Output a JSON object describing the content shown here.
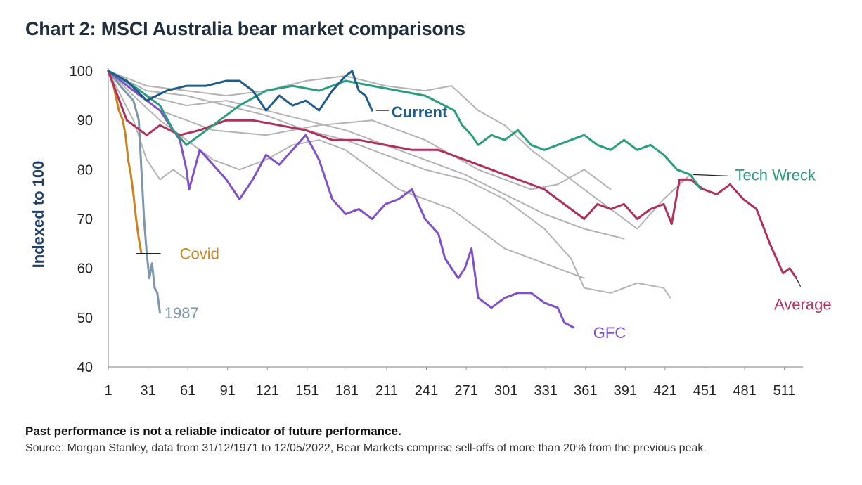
{
  "title": "Chart 2: MSCI Australia bear market comparisons",
  "footnote_bold": "Past performance is not a reliable indicator of future performance.",
  "footnote_source": "Source: Morgan Stanley, data from 31/12/1971 to 12/05/2022, Bear Markets comprise sell-offs of more than 20% from the previous peak.",
  "chart_data": {
    "type": "line",
    "title": "Chart 2: MSCI Australia bear market comparisons",
    "xlabel": "",
    "ylabel": "Indexed to 100",
    "xlim": [
      1,
      525
    ],
    "ylim": [
      40,
      100
    ],
    "x_ticks": [
      1,
      31,
      61,
      91,
      121,
      151,
      181,
      211,
      241,
      271,
      301,
      331,
      361,
      391,
      421,
      451,
      481,
      511
    ],
    "y_ticks": [
      40,
      50,
      60,
      70,
      80,
      90,
      100
    ],
    "grid": false,
    "legend": "direct labels",
    "series": [
      {
        "name": "Covid",
        "color": "#c9841f",
        "label_pos": [
          22,
          63
        ],
        "x": [
          1,
          5,
          9,
          12,
          14,
          16,
          18,
          20,
          22,
          24,
          26
        ],
        "y": [
          100,
          97,
          92,
          90,
          87,
          82,
          79,
          75,
          70,
          66,
          63
        ]
      },
      {
        "name": "1987",
        "color": "#7f95ab",
        "label_pos": [
          38,
          51
        ],
        "x": [
          1,
          10,
          20,
          24,
          26,
          28,
          30,
          32,
          34,
          36,
          38,
          40
        ],
        "y": [
          100,
          97,
          94,
          90,
          80,
          70,
          63,
          58,
          61,
          56,
          55,
          51
        ]
      },
      {
        "name": "GFC",
        "color": "#8050c8",
        "label_pos": [
          352,
          47
        ],
        "x": [
          1,
          20,
          40,
          55,
          60,
          62,
          70,
          80,
          90,
          100,
          110,
          120,
          130,
          140,
          150,
          160,
          170,
          180,
          190,
          200,
          210,
          220,
          230,
          240,
          250,
          255,
          260,
          265,
          270,
          275,
          280,
          290,
          300,
          310,
          320,
          330,
          340,
          345,
          352
        ],
        "y": [
          100,
          96,
          92,
          86,
          80,
          76,
          84,
          81,
          78,
          74,
          78,
          83,
          81,
          84,
          87,
          82,
          74,
          71,
          72,
          70,
          73,
          74,
          76,
          70,
          67,
          62,
          60,
          58,
          60,
          64,
          54,
          52,
          54,
          55,
          55,
          53,
          52,
          49,
          48
        ]
      },
      {
        "name": "Average",
        "color": "#b0305a",
        "label_pos": [
          520,
          58
        ],
        "x": [
          1,
          15,
          30,
          40,
          55,
          70,
          90,
          110,
          130,
          150,
          170,
          190,
          210,
          230,
          250,
          270,
          290,
          310,
          330,
          350,
          360,
          370,
          380,
          390,
          400,
          410,
          420,
          426,
          432,
          440,
          450,
          460,
          470,
          480,
          490,
          500,
          505,
          510,
          515,
          520
        ],
        "y": [
          100,
          90,
          87,
          89,
          87,
          88,
          90,
          90,
          89,
          88,
          86,
          86,
          85,
          84,
          84,
          82,
          80,
          78,
          76,
          72,
          70,
          73,
          72,
          73,
          70,
          72,
          73,
          69,
          78,
          78,
          76,
          75,
          77,
          74,
          72,
          65,
          62,
          59,
          60,
          58
        ]
      },
      {
        "name": "Tech Wreck",
        "color": "#2a9e7f",
        "label_pos": [
          442,
          79
        ],
        "x": [
          1,
          20,
          40,
          50,
          60,
          80,
          100,
          120,
          140,
          160,
          180,
          200,
          220,
          240,
          262,
          268,
          275,
          280,
          290,
          300,
          310,
          320,
          330,
          340,
          350,
          360,
          370,
          380,
          390,
          400,
          410,
          420,
          430,
          440,
          448
        ],
        "y": [
          100,
          97,
          93,
          88,
          85,
          89,
          93,
          96,
          97,
          96,
          98,
          97,
          96,
          95,
          92,
          89,
          87,
          85,
          87,
          86,
          88,
          85,
          84,
          85,
          86,
          87,
          85,
          84,
          86,
          84,
          85,
          83,
          80,
          79,
          76
        ]
      },
      {
        "name": "Current",
        "color": "#1f5c8a",
        "label_pos": [
          203,
          92
        ],
        "x": [
          1,
          15,
          30,
          45,
          60,
          75,
          90,
          100,
          110,
          120,
          130,
          140,
          150,
          160,
          170,
          180,
          185,
          190,
          195,
          200
        ],
        "y": [
          100,
          98,
          94,
          96,
          97,
          97,
          98,
          98,
          96,
          92,
          95,
          93,
          94,
          92,
          96,
          99,
          100,
          96,
          95,
          92
        ]
      },
      {
        "name": "",
        "color": "#b3b3b3",
        "x": [
          1,
          30,
          60,
          90,
          120,
          150,
          180,
          210,
          240,
          270,
          300,
          330,
          350,
          360,
          380,
          400,
          420,
          425
        ],
        "y": [
          100,
          96,
          95,
          93,
          91,
          88,
          86,
          83,
          80,
          78,
          74,
          68,
          62,
          56,
          55,
          57,
          56,
          54
        ]
      },
      {
        "name": "",
        "color": "#b3b3b3",
        "x": [
          1,
          30,
          60,
          90,
          120,
          150,
          180,
          210,
          240,
          260,
          280,
          300,
          320,
          340,
          360,
          380,
          400,
          420,
          440
        ],
        "y": [
          100,
          97,
          96,
          95,
          96,
          98,
          99,
          97,
          96,
          97,
          92,
          89,
          84,
          80,
          76,
          72,
          68,
          74,
          79
        ]
      },
      {
        "name": "",
        "color": "#b3b3b3",
        "x": [
          1,
          40,
          80,
          120,
          160,
          200,
          240,
          280,
          320,
          340,
          360,
          380
        ],
        "y": [
          100,
          92,
          88,
          87,
          89,
          90,
          86,
          80,
          76,
          77,
          80,
          76
        ]
      },
      {
        "name": "",
        "color": "#b3b3b3",
        "x": [
          1,
          20,
          40,
          60,
          80,
          100,
          120,
          140,
          160,
          180,
          200,
          220,
          240,
          260,
          280,
          300,
          320,
          340,
          360
        ],
        "y": [
          100,
          95,
          90,
          86,
          82,
          80,
          82,
          85,
          86,
          84,
          80,
          76,
          74,
          72,
          68,
          64,
          62,
          60,
          58
        ]
      },
      {
        "name": "",
        "color": "#b3b3b3",
        "x": [
          1,
          20,
          30,
          40,
          50,
          60
        ],
        "y": [
          100,
          90,
          82,
          78,
          80,
          78
        ]
      },
      {
        "name": "",
        "color": "#b3b3b3",
        "x": [
          1,
          30,
          60,
          90,
          120,
          150,
          180,
          210,
          240,
          270,
          300,
          330,
          360,
          390
        ],
        "y": [
          100,
          95,
          93,
          94,
          92,
          90,
          88,
          85,
          82,
          79,
          75,
          71,
          68,
          66
        ]
      }
    ]
  }
}
